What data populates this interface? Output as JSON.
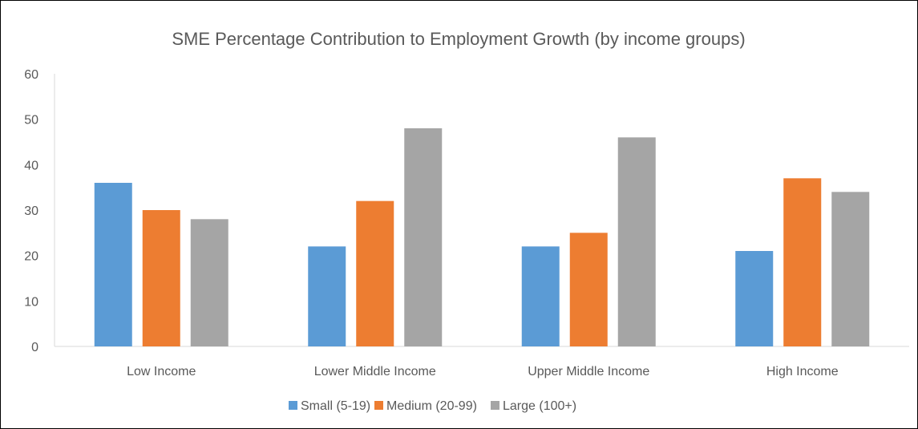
{
  "chart_data": {
    "type": "bar",
    "title": "SME Percentage Contribution to Employment Growth (by income groups)",
    "xlabel": "",
    "ylabel": "",
    "categories": [
      "Low Income",
      "Lower Middle Income",
      "Upper Middle Income",
      "High Income"
    ],
    "series": [
      {
        "name": "Small (5-19)",
        "color": "#5B9BD5",
        "values": [
          36,
          22,
          22,
          21
        ]
      },
      {
        "name": "Medium (20-99)",
        "color": "#ED7D31",
        "values": [
          30,
          32,
          25,
          37
        ]
      },
      {
        "name": "Large (100+)",
        "color": "#A5A5A5",
        "values": [
          28,
          48,
          46,
          34
        ]
      }
    ],
    "ylim": [
      0,
      60
    ],
    "yticks": [
      0,
      10,
      20,
      30,
      40,
      50,
      60
    ],
    "grid": false,
    "legend_position": "bottom"
  }
}
